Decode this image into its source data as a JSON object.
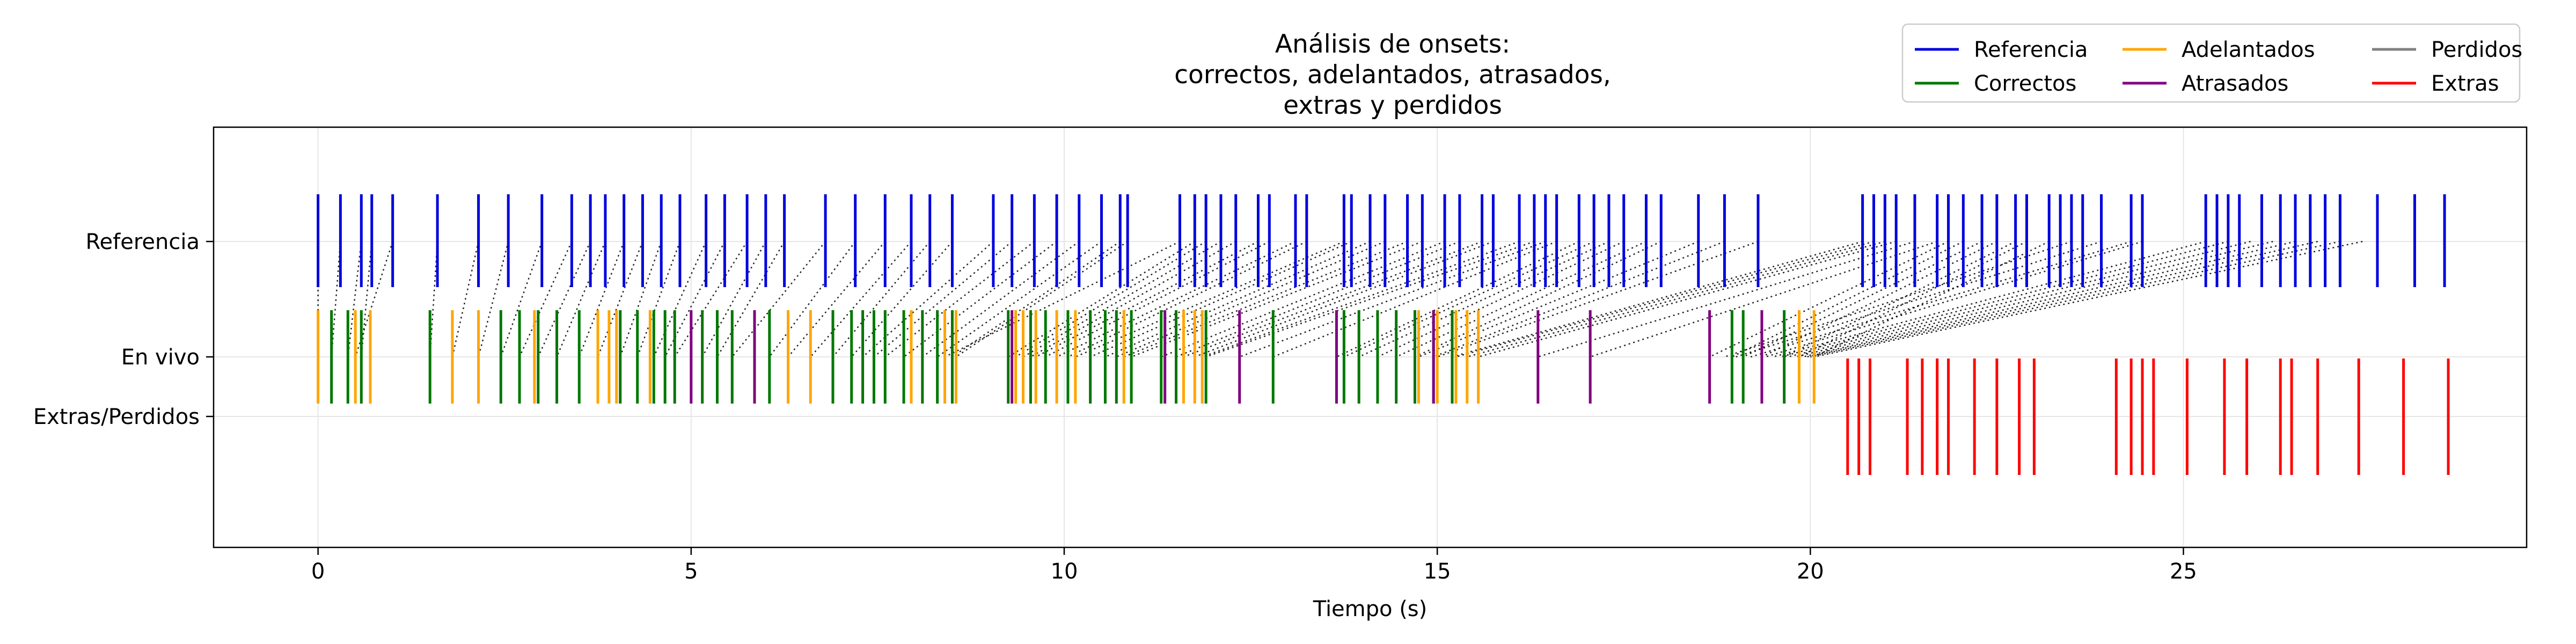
{
  "chart_data": {
    "type": "event-plot",
    "title_lines": [
      "Análisis de onsets:",
      "correctos, adelantados, atrasados,",
      "extras y perdidos"
    ],
    "xlabel": "Tiempo (s)",
    "ylabel": "",
    "xlim": [
      -1.4,
      29.6
    ],
    "grid": true,
    "legend_position": "top-right",
    "xticks": [
      {
        "v": 0,
        "label": "0"
      },
      {
        "v": 5,
        "label": "5"
      },
      {
        "v": 10,
        "label": "10"
      },
      {
        "v": 15,
        "label": "15"
      },
      {
        "v": 20,
        "label": "20"
      },
      {
        "v": 25,
        "label": "25"
      }
    ],
    "rows": [
      {
        "key": "ref",
        "label": "Referencia"
      },
      {
        "key": "live",
        "label": "En vivo"
      },
      {
        "key": "extra",
        "label": "Extras/Perdidos"
      }
    ],
    "legend": [
      {
        "key": "ref",
        "label": "Referencia",
        "color": "#0000dd"
      },
      {
        "key": "correct",
        "label": "Correctos",
        "color": "#007700"
      },
      {
        "key": "early",
        "label": "Adelantados",
        "color": "#ffa500"
      },
      {
        "key": "late",
        "label": "Atrasados",
        "color": "#800080"
      },
      {
        "key": "missed",
        "label": "Perdidos",
        "color": "#808080"
      },
      {
        "key": "extra",
        "label": "Extras",
        "color": "#ff0000"
      }
    ],
    "series": {
      "ref": [
        0.0,
        0.3,
        0.58,
        0.72,
        1.0,
        1.6,
        2.15,
        2.55,
        3.0,
        3.4,
        3.65,
        3.85,
        4.1,
        4.35,
        4.6,
        4.85,
        5.2,
        5.45,
        5.75,
        6.0,
        6.25,
        6.8,
        7.2,
        7.6,
        7.95,
        8.2,
        8.5,
        9.05,
        9.3,
        9.6,
        9.9,
        10.2,
        10.5,
        10.75,
        10.85,
        11.55,
        11.75,
        11.9,
        12.1,
        12.3,
        12.6,
        12.75,
        13.1,
        13.25,
        13.75,
        13.85,
        14.1,
        14.3,
        14.6,
        14.8,
        15.1,
        15.3,
        15.6,
        15.75,
        16.1,
        16.3,
        16.45,
        16.6,
        16.9,
        17.1,
        17.3,
        17.5,
        17.8,
        18.0,
        18.5,
        18.85,
        19.3,
        20.7,
        20.85,
        21.0,
        21.15,
        21.4,
        21.7,
        21.85,
        22.05,
        22.3,
        22.5,
        22.75,
        22.9,
        23.2,
        23.35,
        23.5,
        23.65,
        23.9,
        24.3,
        24.45,
        25.3,
        25.45,
        25.6,
        25.75,
        26.05,
        26.3,
        26.5,
        26.7,
        26.9,
        27.1,
        27.6,
        28.1,
        28.5
      ],
      "correct": [
        0.18,
        0.4,
        0.58,
        1.5,
        2.45,
        2.7,
        2.95,
        3.2,
        3.5,
        3.75,
        4.05,
        4.28,
        4.5,
        4.65,
        4.78,
        5.15,
        5.35,
        5.55,
        6.05,
        6.9,
        7.15,
        7.3,
        7.45,
        7.6,
        7.85,
        8.1,
        8.3,
        8.5,
        9.25,
        9.55,
        9.75,
        10.05,
        10.35,
        10.55,
        10.7,
        10.9,
        11.3,
        11.5,
        11.9,
        12.8,
        13.75,
        13.95,
        14.2,
        14.45,
        14.7,
        14.95,
        15.2,
        18.95,
        19.1,
        19.65
      ],
      "early": [
        0.0,
        0.5,
        0.7,
        1.8,
        2.15,
        2.9,
        3.75,
        3.9,
        4.0,
        4.45,
        6.3,
        6.6,
        7.95,
        8.4,
        8.55,
        9.35,
        9.45,
        9.62,
        9.9,
        10.15,
        10.8,
        11.6,
        11.75,
        11.85,
        14.75,
        15.0,
        15.25,
        15.4,
        15.55,
        19.85,
        20.05
      ],
      "late": [
        5.0,
        5.85,
        9.3,
        11.35,
        12.35,
        13.65,
        14.95,
        16.35,
        17.05,
        18.65,
        19.35
      ],
      "missed": [],
      "extra": [
        20.5,
        20.65,
        20.8,
        21.3,
        21.5,
        21.7,
        21.85,
        22.2,
        22.5,
        22.8,
        23.0,
        24.1,
        24.3,
        24.45,
        24.6,
        25.05,
        25.55,
        25.85,
        26.3,
        26.45,
        26.8,
        27.35,
        27.95,
        28.55
      ]
    },
    "connections": [
      [
        0.0,
        0.0
      ],
      [
        0.3,
        0.18
      ],
      [
        0.58,
        0.4
      ],
      [
        0.72,
        0.58
      ],
      [
        1.0,
        0.5
      ],
      [
        1.6,
        1.5
      ],
      [
        2.15,
        1.8
      ],
      [
        2.55,
        2.15
      ],
      [
        3.0,
        2.45
      ],
      [
        3.4,
        2.7
      ],
      [
        3.65,
        2.95
      ],
      [
        3.85,
        3.2
      ],
      [
        4.1,
        3.5
      ],
      [
        4.35,
        3.75
      ],
      [
        4.6,
        4.05
      ],
      [
        4.85,
        4.28
      ],
      [
        5.2,
        4.5
      ],
      [
        5.45,
        4.65
      ],
      [
        5.75,
        4.78
      ],
      [
        6.0,
        5.15
      ],
      [
        6.25,
        5.35
      ],
      [
        6.8,
        5.55
      ],
      [
        7.2,
        6.05
      ],
      [
        7.6,
        6.3
      ],
      [
        7.95,
        6.6
      ],
      [
        8.2,
        6.9
      ],
      [
        8.5,
        7.15
      ],
      [
        9.05,
        7.3
      ],
      [
        9.3,
        7.45
      ],
      [
        9.6,
        7.6
      ],
      [
        9.9,
        7.85
      ],
      [
        10.2,
        8.1
      ],
      [
        10.5,
        8.3
      ],
      [
        10.75,
        8.5
      ],
      [
        10.85,
        8.55
      ],
      [
        11.55,
        8.4
      ],
      [
        11.75,
        9.25
      ],
      [
        11.9,
        9.35
      ],
      [
        12.1,
        9.45
      ],
      [
        12.3,
        9.55
      ],
      [
        12.6,
        9.62
      ],
      [
        12.75,
        9.75
      ],
      [
        13.1,
        9.9
      ],
      [
        13.25,
        10.05
      ],
      [
        13.75,
        10.15
      ],
      [
        13.85,
        10.35
      ],
      [
        14.1,
        10.55
      ],
      [
        14.3,
        10.7
      ],
      [
        14.6,
        10.8
      ],
      [
        14.8,
        10.9
      ],
      [
        15.1,
        11.3
      ],
      [
        15.3,
        11.5
      ],
      [
        15.6,
        11.6
      ],
      [
        15.75,
        11.75
      ],
      [
        16.1,
        11.85
      ],
      [
        16.3,
        11.9
      ],
      [
        16.45,
        12.35
      ],
      [
        16.6,
        12.8
      ],
      [
        16.9,
        13.65
      ],
      [
        17.1,
        13.75
      ],
      [
        17.3,
        13.95
      ],
      [
        17.5,
        14.2
      ],
      [
        17.8,
        14.45
      ],
      [
        18.0,
        14.7
      ],
      [
        18.5,
        14.75
      ],
      [
        18.85,
        14.95
      ],
      [
        19.3,
        15.0
      ],
      [
        20.7,
        15.2
      ],
      [
        20.85,
        15.25
      ],
      [
        21.0,
        15.4
      ],
      [
        21.15,
        15.55
      ],
      [
        21.4,
        16.35
      ],
      [
        21.7,
        17.05
      ],
      [
        21.85,
        18.65
      ],
      [
        22.05,
        18.95
      ],
      [
        22.3,
        19.1
      ],
      [
        22.5,
        19.35
      ],
      [
        22.75,
        19.65
      ],
      [
        22.9,
        19.85
      ],
      [
        23.2,
        20.05
      ],
      [
        23.5,
        18.85
      ],
      [
        23.9,
        19.0
      ],
      [
        24.3,
        19.2
      ],
      [
        24.45,
        19.4
      ],
      [
        25.3,
        19.5
      ],
      [
        25.6,
        19.6
      ],
      [
        25.9,
        19.7
      ],
      [
        26.2,
        19.8
      ],
      [
        26.5,
        19.9
      ],
      [
        26.8,
        19.95
      ],
      [
        27.1,
        20.0
      ],
      [
        27.4,
        20.05
      ]
    ]
  }
}
